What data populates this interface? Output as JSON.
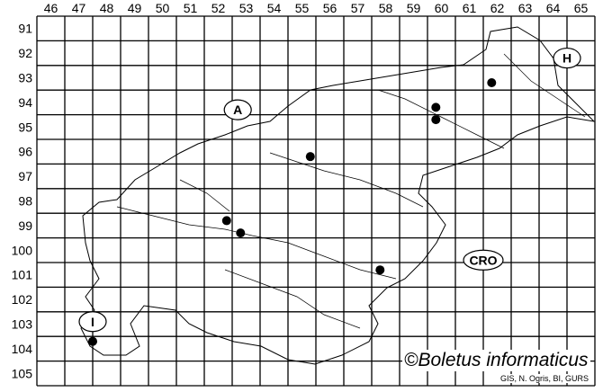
{
  "map": {
    "columns": [
      "46",
      "47",
      "48",
      "49",
      "50",
      "51",
      "52",
      "53",
      "54",
      "55",
      "56",
      "57",
      "58",
      "59",
      "60",
      "61",
      "62",
      "63",
      "64",
      "65"
    ],
    "rows": [
      "91",
      "92",
      "93",
      "94",
      "95",
      "96",
      "97",
      "98",
      "99",
      "100",
      "101",
      "102",
      "103",
      "104",
      "105"
    ],
    "country_labels": [
      {
        "text": "A",
        "col": 52.7,
        "row": 94.3
      },
      {
        "text": "H",
        "col": 64.5,
        "row": 92.2
      },
      {
        "text": "CRO",
        "col": 61.5,
        "row": 100.4
      },
      {
        "text": "I",
        "col": 47.5,
        "row": 102.9
      }
    ],
    "records": [
      {
        "col": 55.3,
        "row": 96.2
      },
      {
        "col": 59.8,
        "row": 94.2
      },
      {
        "col": 59.8,
        "row": 94.7
      },
      {
        "col": 61.8,
        "row": 93.2
      },
      {
        "col": 52.3,
        "row": 98.8
      },
      {
        "col": 52.8,
        "row": 99.3
      },
      {
        "col": 57.8,
        "row": 100.8
      },
      {
        "col": 47.5,
        "row": 103.7
      }
    ],
    "copyright": "©Boletus informaticus",
    "source": "GIS, N. Ogris, BI, GURS",
    "colors": {
      "ink": "#000000",
      "background": "#ffffff"
    }
  }
}
